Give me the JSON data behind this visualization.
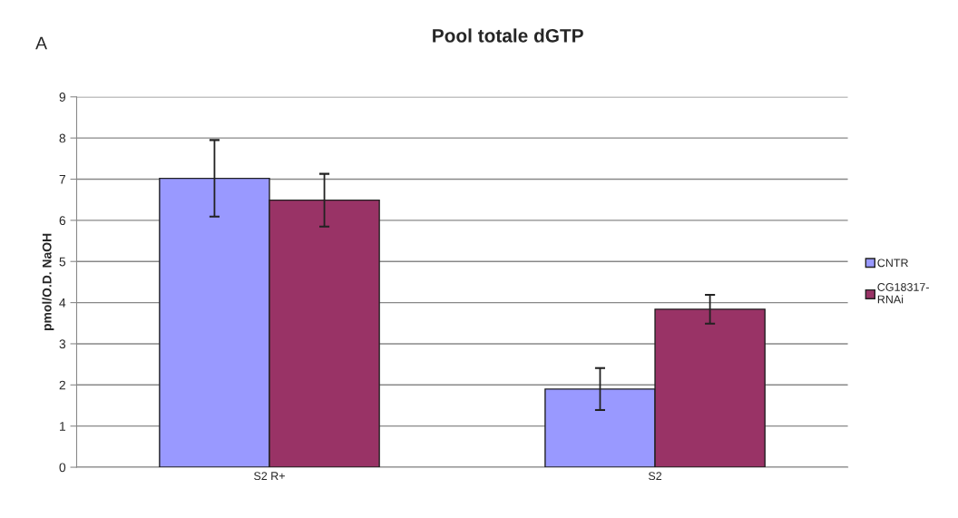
{
  "chart_data": {
    "type": "bar",
    "title": "Pool totale dGTP",
    "ylabel": "pmol/O.D. NaOH",
    "annotations": [
      "A"
    ],
    "categories": [
      "S2 R+",
      "S2"
    ],
    "series": [
      {
        "name": "CNTR",
        "color": "#9999ff",
        "values": [
          7.02,
          1.9
        ],
        "errors": [
          0.93,
          0.51
        ]
      },
      {
        "name": "CG18317-\nRNAi",
        "color": "#993366",
        "values": [
          6.49,
          3.84
        ],
        "errors": [
          0.64,
          0.35
        ]
      }
    ],
    "ylim": [
      0,
      9
    ],
    "yticks": [
      0,
      1,
      2,
      3,
      4,
      5,
      6,
      7,
      8,
      9
    ],
    "grid": "y",
    "legend": "right"
  }
}
